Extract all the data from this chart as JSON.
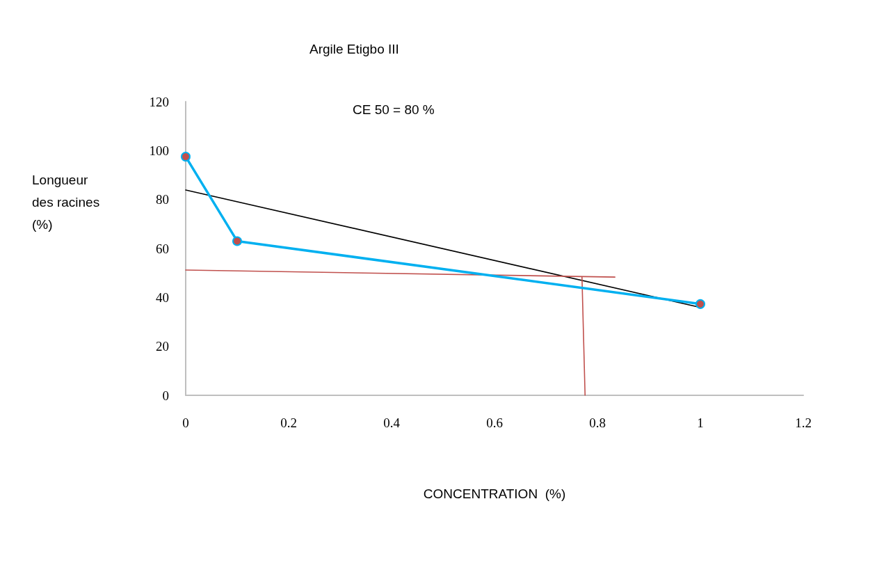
{
  "chart_data": {
    "type": "line",
    "title": "Argile Etigbo III",
    "xlabel": "CONCENTRATION  (%)",
    "ylabel": "Longueur\ndes racines\n(%)",
    "annotations": [
      "CE 50 = 80 %"
    ],
    "xlim": [
      0,
      1.2
    ],
    "xticks": [
      0,
      0.2,
      0.4,
      0.6,
      0.8,
      1,
      1.2
    ],
    "ylim": [
      0,
      120
    ],
    "yticks": [
      0,
      20,
      40,
      60,
      80,
      100,
      120
    ],
    "grid": false,
    "series": [
      {
        "color": "#00b0f0",
        "x": [
          0,
          0.1,
          1
        ],
        "values": [
          97.5,
          63,
          37.3
        ],
        "marker": "circle"
      },
      {
        "color": "#000000",
        "x": [
          0,
          1
        ],
        "values": [
          83.9,
          35.9
        ],
        "marker": "none"
      },
      {
        "color": "#c0504d",
        "x": [
          0,
          0.834
        ],
        "values": [
          51.2,
          48.3
        ],
        "marker": "none"
      },
      {
        "color": "#c0504d",
        "x": [
          0.77,
          0.776
        ],
        "values": [
          48.3,
          0
        ],
        "marker": "none"
      }
    ]
  }
}
